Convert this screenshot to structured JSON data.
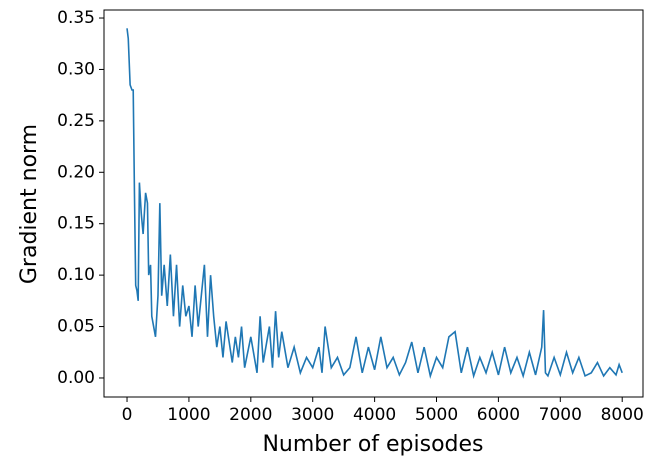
{
  "chart_data": {
    "type": "line",
    "x_label": "Number of episodes",
    "y_label": "Gradient norm",
    "series": [
      {
        "color": "#1f77b4",
        "x": [
          0,
          20,
          50,
          80,
          100,
          120,
          140,
          160,
          180,
          200,
          230,
          260,
          300,
          330,
          350,
          380,
          400,
          430,
          460,
          500,
          530,
          560,
          600,
          650,
          700,
          750,
          800,
          850,
          900,
          950,
          1000,
          1050,
          1100,
          1150,
          1200,
          1250,
          1300,
          1350,
          1400,
          1450,
          1500,
          1550,
          1600,
          1700,
          1750,
          1800,
          1850,
          1900,
          2000,
          2100,
          2150,
          2200,
          2300,
          2350,
          2400,
          2450,
          2500,
          2600,
          2700,
          2800,
          2900,
          3000,
          3100,
          3150,
          3200,
          3300,
          3400,
          3500,
          3600,
          3700,
          3800,
          3900,
          4000,
          4100,
          4200,
          4300,
          4400,
          4500,
          4600,
          4700,
          4800,
          4900,
          5000,
          5100,
          5200,
          5300,
          5400,
          5500,
          5600,
          5700,
          5800,
          5900,
          6000,
          6100,
          6200,
          6300,
          6400,
          6500,
          6600,
          6700,
          6730,
          6760,
          6800,
          6900,
          7000,
          7100,
          7200,
          7300,
          7400,
          7500,
          7600,
          7700,
          7800,
          7900,
          7950,
          8000
        ],
        "values": [
          0.34,
          0.33,
          0.285,
          0.28,
          0.28,
          0.18,
          0.09,
          0.085,
          0.075,
          0.19,
          0.16,
          0.14,
          0.18,
          0.17,
          0.1,
          0.11,
          0.06,
          0.05,
          0.04,
          0.08,
          0.17,
          0.08,
          0.11,
          0.07,
          0.12,
          0.06,
          0.11,
          0.05,
          0.09,
          0.06,
          0.07,
          0.04,
          0.09,
          0.05,
          0.08,
          0.11,
          0.04,
          0.1,
          0.06,
          0.03,
          0.05,
          0.02,
          0.055,
          0.015,
          0.04,
          0.02,
          0.05,
          0.01,
          0.04,
          0.005,
          0.06,
          0.015,
          0.05,
          0.01,
          0.065,
          0.02,
          0.045,
          0.01,
          0.03,
          0.005,
          0.02,
          0.01,
          0.03,
          0.005,
          0.05,
          0.01,
          0.02,
          0.003,
          0.01,
          0.04,
          0.005,
          0.03,
          0.008,
          0.04,
          0.01,
          0.02,
          0.003,
          0.015,
          0.035,
          0.005,
          0.03,
          0.002,
          0.02,
          0.01,
          0.04,
          0.045,
          0.005,
          0.03,
          0.002,
          0.02,
          0.005,
          0.025,
          0.003,
          0.03,
          0.005,
          0.02,
          0.002,
          0.025,
          0.003,
          0.03,
          0.066,
          0.005,
          0.002,
          0.02,
          0.003,
          0.025,
          0.005,
          0.02,
          0.002,
          0.005,
          0.015,
          0.002,
          0.01,
          0.003,
          0.013,
          0.005
        ]
      }
    ],
    "xlim": [
      -372,
      8336
    ],
    "ylim": [
      -0.0185,
      0.3578
    ],
    "xticks": [
      0,
      1000,
      2000,
      3000,
      4000,
      5000,
      6000,
      7000,
      8000
    ],
    "yticks": [
      {
        "value": 0,
        "label": "0.00"
      },
      0.05,
      {
        "value": 0.1,
        "label": "0.10"
      },
      0.15,
      {
        "value": 0.2,
        "label": "0.20"
      },
      0.25,
      {
        "value": 0.3,
        "label": "0.30"
      },
      0.35
    ]
  }
}
